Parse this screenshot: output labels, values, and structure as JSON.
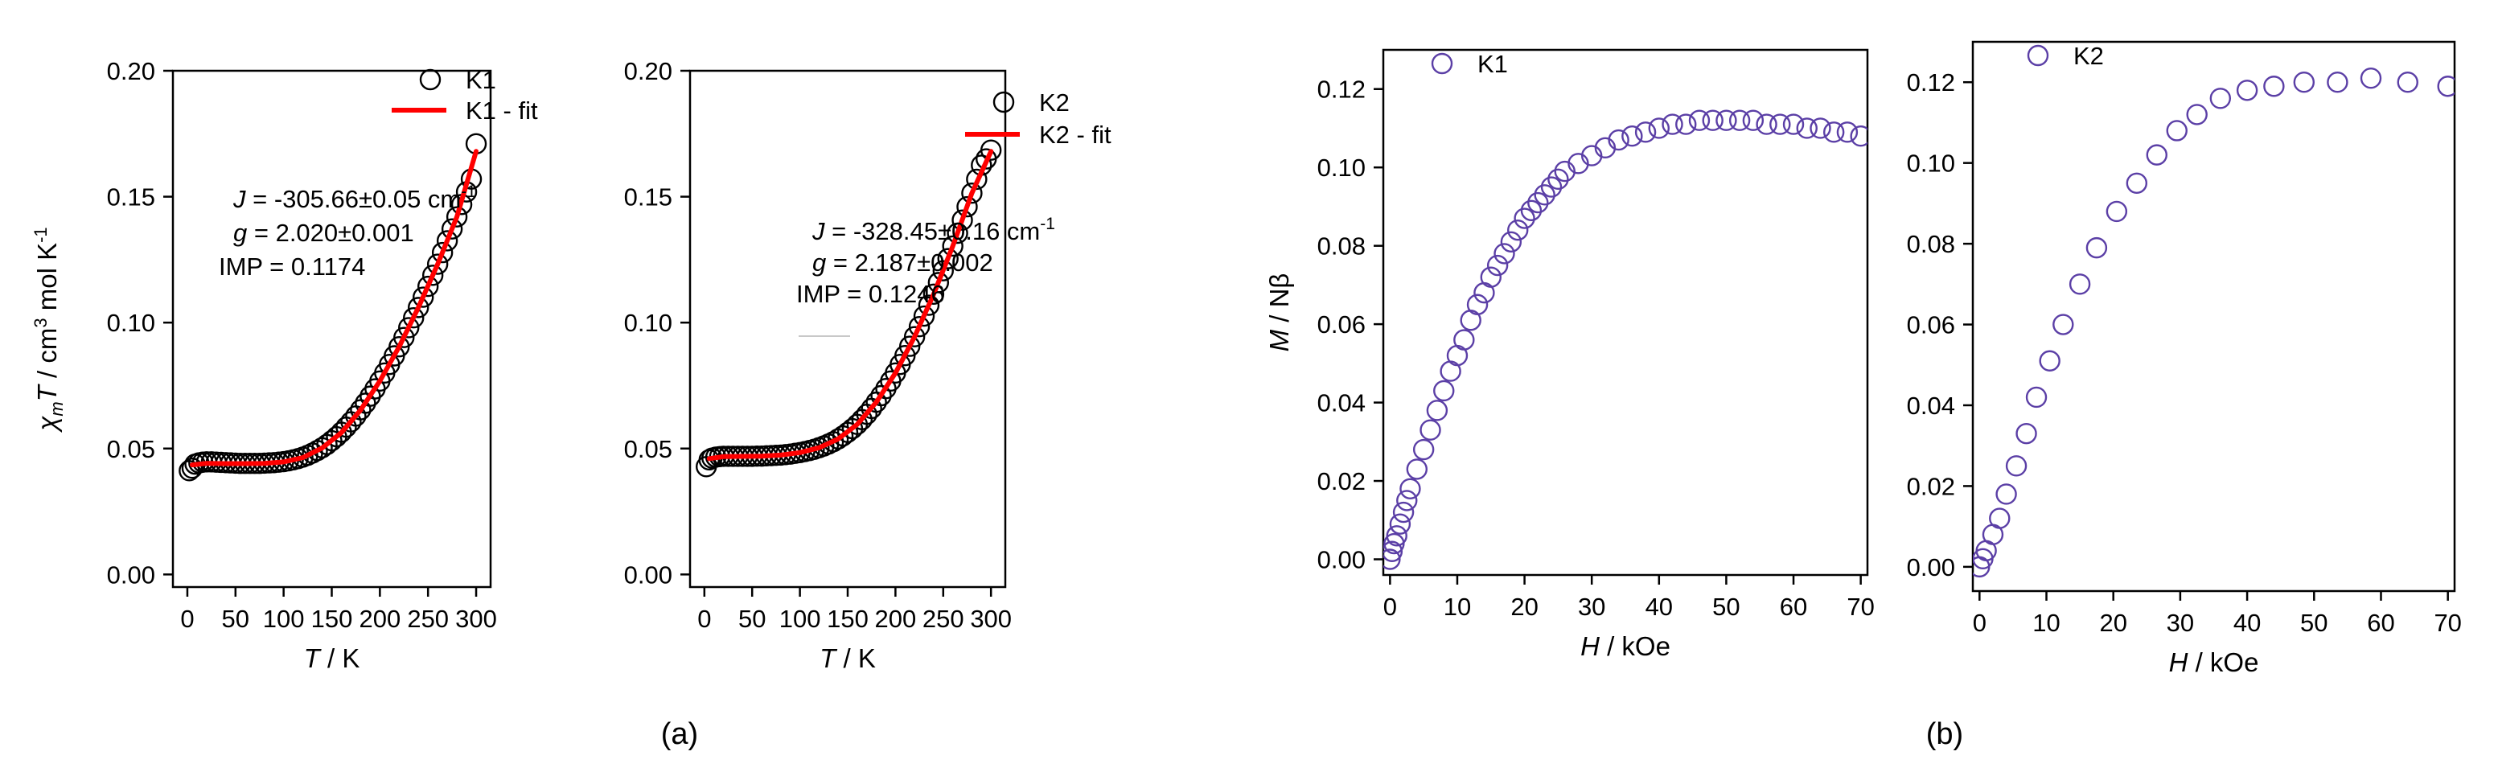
{
  "panel_labels": [
    "(a)",
    "(b)"
  ],
  "chart_data": [
    {
      "type": "scatter",
      "panel": "a",
      "ylabel": {
        "sym1": "χ",
        "sub": "m",
        "sym2": "T",
        "rest1": " / cm",
        "sup1": "3",
        "rest2": " mol K",
        "sup2": "-1"
      },
      "xlabel": {
        "sym": "T",
        "rest": " / K"
      },
      "xlim": [
        -15,
        315
      ],
      "ylim": [
        -0.005,
        0.2
      ],
      "xticks": [
        0,
        50,
        100,
        150,
        200,
        250,
        300
      ],
      "yticks": [
        0.0,
        0.05,
        0.1,
        0.15,
        0.2
      ],
      "ytick_decimals": 2,
      "series": [
        {
          "name": "K1",
          "style": "circle",
          "color": "#000000",
          "x": [
            2,
            5,
            8,
            12,
            16,
            20,
            25,
            30,
            35,
            40,
            45,
            50,
            55,
            60,
            65,
            70,
            75,
            80,
            85,
            90,
            95,
            100,
            105,
            110,
            115,
            120,
            125,
            130,
            135,
            140,
            145,
            150,
            155,
            160,
            165,
            170,
            175,
            180,
            185,
            190,
            195,
            200,
            205,
            210,
            215,
            220,
            225,
            230,
            235,
            240,
            245,
            250,
            255,
            260,
            265,
            270,
            275,
            280,
            285,
            290,
            295,
            300
          ],
          "y": [
            0.0412,
            0.0422,
            0.0438,
            0.0443,
            0.0446,
            0.0447,
            0.0447,
            0.0446,
            0.0445,
            0.0444,
            0.0443,
            0.0442,
            0.0441,
            0.0441,
            0.0441,
            0.0441,
            0.0441,
            0.0442,
            0.0443,
            0.0444,
            0.0446,
            0.0448,
            0.0451,
            0.0455,
            0.046,
            0.0466,
            0.0473,
            0.0482,
            0.0492,
            0.0503,
            0.0516,
            0.0531,
            0.0547,
            0.0565,
            0.0585,
            0.0606,
            0.0629,
            0.0654,
            0.068,
            0.0708,
            0.0737,
            0.0768,
            0.08,
            0.0834,
            0.0868,
            0.0904,
            0.0941,
            0.098,
            0.1019,
            0.106,
            0.1101,
            0.1144,
            0.1188,
            0.1232,
            0.1278,
            0.1325,
            0.1372,
            0.142,
            0.1469,
            0.1519,
            0.157,
            0.171
          ]
        },
        {
          "name": "K1 - fit",
          "style": "line",
          "color": "#ff0000",
          "x": [
            5,
            20,
            40,
            60,
            80,
            100,
            120,
            140,
            160,
            180,
            200,
            220,
            240,
            260,
            280,
            300
          ],
          "y": [
            0.0435,
            0.0441,
            0.044,
            0.044,
            0.0441,
            0.0447,
            0.0464,
            0.0502,
            0.0563,
            0.0653,
            0.0768,
            0.0904,
            0.106,
            0.1232,
            0.142,
            0.168
          ]
        }
      ],
      "annotations": [
        {
          "sym": "J",
          "rest": " = -305.66±0.05 cm",
          "sup": "-1"
        },
        {
          "sym": "g",
          "rest": " = 2.020±0.001"
        },
        {
          "text": "IMP = 0.1174"
        }
      ]
    },
    {
      "type": "scatter",
      "panel": "a",
      "xlabel": {
        "sym": "T",
        "rest": " / K"
      },
      "xlim": [
        -15,
        315
      ],
      "ylim": [
        -0.005,
        0.2
      ],
      "xticks": [
        0,
        50,
        100,
        150,
        200,
        250,
        300
      ],
      "yticks": [
        0.0,
        0.05,
        0.1,
        0.15,
        0.2
      ],
      "ytick_decimals": 2,
      "series": [
        {
          "name": "K2",
          "style": "circle",
          "color": "#000000",
          "x": [
            2,
            5,
            8,
            12,
            16,
            20,
            25,
            30,
            35,
            40,
            45,
            50,
            55,
            60,
            65,
            70,
            75,
            80,
            85,
            90,
            95,
            100,
            105,
            110,
            115,
            120,
            125,
            130,
            135,
            140,
            145,
            150,
            155,
            160,
            165,
            170,
            175,
            180,
            185,
            190,
            195,
            200,
            205,
            210,
            215,
            220,
            225,
            230,
            235,
            240,
            245,
            250,
            255,
            260,
            265,
            270,
            275,
            280,
            285,
            290,
            295,
            300
          ],
          "y": [
            0.0428,
            0.0455,
            0.0462,
            0.0466,
            0.0468,
            0.0469,
            0.0469,
            0.0469,
            0.0469,
            0.0469,
            0.0469,
            0.0469,
            0.047,
            0.047,
            0.0471,
            0.0472,
            0.0473,
            0.0474,
            0.0476,
            0.0478,
            0.0481,
            0.0484,
            0.0488,
            0.0492,
            0.0497,
            0.0503,
            0.051,
            0.0518,
            0.0527,
            0.0538,
            0.055,
            0.0564,
            0.0579,
            0.0596,
            0.0615,
            0.0636,
            0.0659,
            0.0684,
            0.071,
            0.0738,
            0.0768,
            0.08,
            0.0834,
            0.0869,
            0.0906,
            0.0944,
            0.0984,
            0.1026,
            0.1069,
            0.1113,
            0.1159,
            0.1206,
            0.1254,
            0.1304,
            0.1355,
            0.1407,
            0.146,
            0.1514,
            0.1569,
            0.1625,
            0.165,
            0.1685
          ]
        },
        {
          "name": "K2 - fit",
          "style": "line",
          "color": "#ff0000",
          "x": [
            5,
            20,
            40,
            60,
            80,
            100,
            120,
            140,
            160,
            180,
            200,
            220,
            240,
            260,
            280,
            300
          ],
          "y": [
            0.046,
            0.0468,
            0.0469,
            0.047,
            0.0474,
            0.0484,
            0.0503,
            0.0538,
            0.0596,
            0.0684,
            0.08,
            0.0944,
            0.1113,
            0.1304,
            0.1514,
            0.168
          ]
        }
      ],
      "annotations": [
        {
          "sym": "J",
          "rest": " = -328.45±0.16 cm",
          "sup": "-1"
        },
        {
          "sym": "g",
          "rest": " = 2.187±0.002"
        },
        {
          "text": "IMP = 0.1246"
        }
      ]
    },
    {
      "type": "scatter",
      "panel": "b",
      "ylabel": {
        "sym": "M",
        "rest": " / Nβ"
      },
      "xlabel": {
        "sym": "H",
        "rest": " / kOe"
      },
      "xlim": [
        -1,
        71
      ],
      "ylim": [
        -0.004,
        0.13
      ],
      "xticks": [
        0,
        10,
        20,
        30,
        40,
        50,
        60,
        70
      ],
      "yticks": [
        0.0,
        0.02,
        0.04,
        0.06,
        0.08,
        0.1,
        0.12
      ],
      "ytick_decimals": 2,
      "series": [
        {
          "name": "K1",
          "style": "circle",
          "color": "#5b3fa6",
          "x": [
            0,
            0.3,
            0.6,
            1,
            1.5,
            2,
            2.5,
            3,
            4,
            5,
            6,
            7,
            8,
            9,
            10,
            11,
            12,
            13,
            14,
            15,
            16,
            17,
            18,
            19,
            20,
            21,
            22,
            23,
            24,
            25,
            26,
            28,
            30,
            32,
            34,
            36,
            38,
            40,
            42,
            44,
            46,
            48,
            50,
            52,
            54,
            56,
            58,
            60,
            62,
            64,
            66,
            68,
            70
          ],
          "y": [
            0.0,
            0.002,
            0.004,
            0.006,
            0.009,
            0.012,
            0.015,
            0.018,
            0.023,
            0.028,
            0.033,
            0.038,
            0.043,
            0.048,
            0.052,
            0.056,
            0.061,
            0.065,
            0.068,
            0.072,
            0.075,
            0.078,
            0.081,
            0.084,
            0.087,
            0.089,
            0.091,
            0.093,
            0.095,
            0.097,
            0.099,
            0.101,
            0.103,
            0.105,
            0.107,
            0.108,
            0.109,
            0.11,
            0.111,
            0.111,
            0.112,
            0.112,
            0.112,
            0.112,
            0.112,
            0.111,
            0.111,
            0.111,
            0.11,
            0.11,
            0.109,
            0.109,
            0.108
          ]
        }
      ],
      "legend": [
        "K1"
      ]
    },
    {
      "type": "scatter",
      "panel": "b",
      "xlabel": {
        "sym": "H",
        "rest": " / kOe"
      },
      "xlim": [
        -1,
        71
      ],
      "ylim": [
        -0.006,
        0.13
      ],
      "xticks": [
        0,
        10,
        20,
        30,
        40,
        50,
        60,
        70
      ],
      "yticks": [
        0.0,
        0.02,
        0.04,
        0.06,
        0.08,
        0.1,
        0.12
      ],
      "ytick_decimals": 2,
      "series": [
        {
          "name": "K2",
          "style": "circle",
          "color": "#5b3fa6",
          "x": [
            0,
            0.5,
            1,
            2,
            3,
            4,
            5.5,
            7,
            8.5,
            10.5,
            12.5,
            15,
            17.5,
            20.5,
            23.5,
            26.5,
            29.5,
            32.5,
            36,
            40,
            44,
            48.5,
            53.5,
            58.5,
            64,
            70
          ],
          "y": [
            0.0,
            0.002,
            0.004,
            0.008,
            0.012,
            0.018,
            0.025,
            0.033,
            0.042,
            0.051,
            0.06,
            0.07,
            0.079,
            0.088,
            0.095,
            0.102,
            0.108,
            0.112,
            0.116,
            0.118,
            0.119,
            0.12,
            0.12,
            0.121,
            0.12,
            0.119
          ]
        }
      ],
      "legend": [
        "K2"
      ]
    }
  ]
}
